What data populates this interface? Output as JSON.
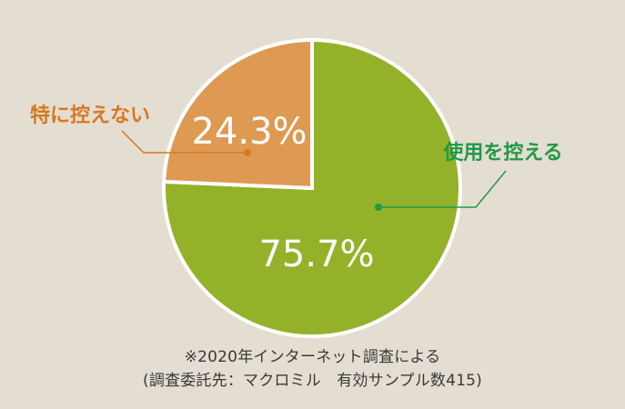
{
  "chart_data": {
    "type": "pie",
    "slices": [
      {
        "label": "使用を控える",
        "value": 75.7,
        "value_label": "75.7%",
        "color": "#93b22a",
        "label_color": "#1f9a47"
      },
      {
        "label": "特に控えない",
        "value": 24.3,
        "value_label": "24.3%",
        "color": "#de9a52",
        "label_color": "#d8781f"
      }
    ],
    "start": "top",
    "direction": "clockwise",
    "slice_border_color": "#ffffff",
    "value_label_color": "#ffffff"
  },
  "notes": {
    "line1": "※2020年インターネット調査による",
    "line2": "(調査委託先：マクロミル　有効サンプル数415)"
  }
}
